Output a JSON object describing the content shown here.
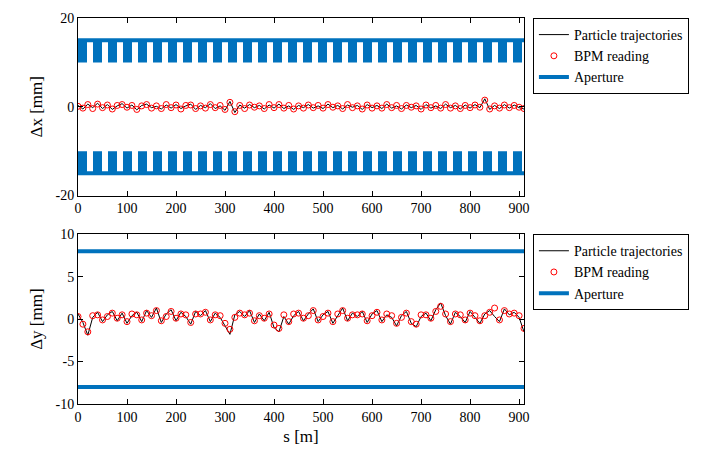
{
  "chart_data": [
    {
      "type": "line",
      "ylabel": "Δx [mm]",
      "xlim": [
        0,
        910
      ],
      "xticks": [
        0,
        100,
        200,
        300,
        400,
        500,
        600,
        700,
        800,
        900
      ],
      "ylim": [
        -20,
        20
      ],
      "yticks": [
        -20,
        0,
        20
      ],
      "grid": false,
      "legend": "right",
      "x": [
        0,
        10,
        20,
        30,
        40,
        50,
        60,
        70,
        80,
        90,
        100,
        110,
        120,
        130,
        140,
        150,
        160,
        170,
        180,
        190,
        200,
        210,
        220,
        230,
        240,
        250,
        260,
        270,
        280,
        290,
        300,
        310,
        320,
        330,
        340,
        350,
        360,
        370,
        380,
        390,
        400,
        410,
        420,
        430,
        440,
        450,
        460,
        470,
        480,
        490,
        500,
        510,
        520,
        530,
        540,
        550,
        560,
        570,
        580,
        590,
        600,
        610,
        620,
        630,
        640,
        650,
        660,
        670,
        680,
        690,
        700,
        710,
        720,
        730,
        740,
        750,
        760,
        770,
        780,
        790,
        800,
        810,
        820,
        830,
        840,
        850,
        860,
        870,
        880,
        890,
        900,
        910
      ],
      "series": [
        {
          "name": "Particle trajectories",
          "type": "line",
          "color": "#000000",
          "values": [
            0.3,
            -0.5,
            0.6,
            -0.2,
            0.8,
            -0.4,
            0.5,
            -0.6,
            0.2,
            0.7,
            -0.3,
            0.4,
            -0.7,
            0.3,
            0.6,
            -0.2,
            0.1,
            -0.5,
            0.4,
            -0.3,
            0.5,
            -0.4,
            0.2,
            0.6,
            -0.6,
            0.3,
            -0.2,
            0.7,
            -0.4,
            0.2,
            -0.8,
            1.2,
            -1.3,
            0.4,
            -0.3,
            0.5,
            -0.2,
            0.3,
            -0.5,
            0.4,
            -0.3,
            0.6,
            -0.4,
            0.2,
            -0.6,
            0.3,
            -0.2,
            0.5,
            -0.3,
            0.2,
            -0.4,
            0.6,
            -0.2,
            0.3,
            -0.5,
            0.4,
            -0.1,
            0.3,
            -0.6,
            0.5,
            -0.2,
            0.3,
            -0.4,
            0.6,
            -0.3,
            0.2,
            -0.5,
            0.4,
            -0.2,
            0.3,
            -0.6,
            0.5,
            -0.3,
            0.2,
            -0.4,
            0.6,
            -0.2,
            0.3,
            -0.5,
            0.4,
            -0.3,
            0.5,
            -0.2,
            1.8,
            -0.6,
            0.3,
            -0.4,
            0.5,
            -0.3,
            0.4,
            -0.2,
            -0.5
          ]
        },
        {
          "name": "BPM reading",
          "type": "scatter",
          "marker": "circle-open",
          "color": "#ff0000",
          "values": [
            0.1,
            -0.3,
            0.5,
            -0.4,
            0.6,
            -0.2,
            0.4,
            -0.5,
            0.3,
            0.5,
            -0.1,
            0.3,
            -0.6,
            0.2,
            0.5,
            -0.3,
            0.2,
            -0.4,
            0.5,
            -0.2,
            0.4,
            -0.5,
            0.3,
            0.4,
            -0.4,
            0.2,
            -0.3,
            0.5,
            -0.2,
            0.3,
            -0.6,
            1.0,
            -1.1,
            0.3,
            -0.4,
            0.4,
            -0.1,
            0.2,
            -0.4,
            0.5,
            -0.2,
            0.5,
            -0.3,
            0.3,
            -0.5,
            0.2,
            -0.3,
            0.4,
            -0.2,
            0.3,
            -0.3,
            0.5,
            -0.1,
            0.2,
            -0.4,
            0.5,
            -0.2,
            0.2,
            -0.5,
            0.4,
            -0.3,
            0.2,
            -0.3,
            0.5,
            -0.2,
            0.3,
            -0.4,
            0.3,
            -0.1,
            0.2,
            -0.5,
            0.4,
            -0.2,
            0.3,
            -0.3,
            0.5,
            -0.3,
            0.2,
            -0.4,
            0.3,
            -0.2,
            0.4,
            -0.1,
            1.5,
            -0.5,
            0.2,
            -0.3,
            0.4,
            -0.2,
            0.3,
            -0.1,
            -0.4
          ]
        },
        {
          "name": "Aperture",
          "type": "hline",
          "color": "#0072bd",
          "levels": [
            15,
            -15
          ],
          "inner_levels": [
            10,
            -10
          ]
        }
      ]
    },
    {
      "type": "line",
      "xlabel": "s [m]",
      "ylabel": "Δy [mm]",
      "xlim": [
        0,
        910
      ],
      "xticks": [
        0,
        100,
        200,
        300,
        400,
        500,
        600,
        700,
        800,
        900
      ],
      "ylim": [
        -10,
        10
      ],
      "yticks": [
        -10,
        -5,
        0,
        5,
        10
      ],
      "grid": false,
      "legend": "right",
      "x": [
        0,
        10,
        20,
        30,
        40,
        50,
        60,
        70,
        80,
        90,
        100,
        110,
        120,
        130,
        140,
        150,
        160,
        170,
        180,
        190,
        200,
        210,
        220,
        230,
        240,
        250,
        260,
        270,
        280,
        290,
        300,
        310,
        320,
        330,
        340,
        350,
        360,
        370,
        380,
        390,
        400,
        410,
        420,
        430,
        440,
        450,
        460,
        470,
        480,
        490,
        500,
        510,
        520,
        530,
        540,
        550,
        560,
        570,
        580,
        590,
        600,
        610,
        620,
        630,
        640,
        650,
        660,
        670,
        680,
        690,
        700,
        710,
        720,
        730,
        740,
        750,
        760,
        770,
        780,
        790,
        800,
        810,
        820,
        830,
        840,
        850,
        860,
        870,
        880,
        890,
        900,
        910
      ],
      "series": [
        {
          "name": "Particle trajectories",
          "type": "line",
          "color": "#000000",
          "values": [
            0.6,
            -0.4,
            -1.9,
            0.2,
            0.8,
            -0.3,
            0.5,
            0.9,
            -0.2,
            0.7,
            -0.5,
            0.4,
            0.8,
            -0.3,
            1.0,
            0.2,
            1.3,
            -0.4,
            0.6,
            1.1,
            -0.2,
            0.8,
            0.3,
            -0.6,
            0.9,
            0.4,
            1.0,
            -0.3,
            0.7,
            0.2,
            -0.8,
            -1.8,
            0.5,
            0.9,
            0.3,
            1.0,
            -0.4,
            0.6,
            -0.2,
            0.8,
            -1.0,
            -1.5,
            0.3,
            -0.6,
            0.4,
            0.9,
            -0.2,
            0.6,
            1.2,
            -0.3,
            0.5,
            0.9,
            -0.5,
            0.4,
            1.3,
            -0.2,
            0.7,
            0.3,
            0.9,
            -0.4,
            0.6,
            1.0,
            -0.3,
            0.5,
            0.2,
            -0.8,
            0.4,
            0.9,
            -0.5,
            -0.9,
            0.3,
            0.7,
            -0.2,
            1.1,
            1.9,
            0.4,
            -0.6,
            0.8,
            0.3,
            -0.4,
            0.9,
            0.2,
            -0.5,
            0.6,
            1.0,
            0.3,
            -0.3,
            1.2,
            0.5,
            0.8,
            0.2,
            -1.5
          ]
        },
        {
          "name": "BPM reading",
          "type": "scatter",
          "marker": "circle-open",
          "color": "#ff0000",
          "values": [
            0.3,
            -0.6,
            -1.5,
            0.4,
            0.5,
            -0.1,
            0.3,
            0.7,
            0.1,
            0.5,
            -0.3,
            0.6,
            0.5,
            -0.1,
            0.7,
            0.4,
            1.0,
            -0.2,
            0.3,
            0.9,
            0.1,
            0.6,
            0.5,
            -0.4,
            0.6,
            0.6,
            0.8,
            -0.1,
            0.5,
            0.4,
            -0.5,
            -1.2,
            0.2,
            0.7,
            0.5,
            0.7,
            -0.2,
            0.4,
            0.1,
            0.6,
            -0.7,
            -1.1,
            0.5,
            -0.3,
            0.6,
            0.7,
            0.1,
            0.4,
            1.0,
            -0.1,
            0.3,
            0.7,
            -0.3,
            0.6,
            1.0,
            0.1,
            0.5,
            0.5,
            0.6,
            -0.2,
            0.4,
            0.8,
            -0.1,
            0.6,
            0.4,
            -0.5,
            0.2,
            0.7,
            -0.3,
            -0.6,
            0.5,
            0.5,
            0.1,
            0.9,
            1.5,
            0.6,
            -0.3,
            0.6,
            0.5,
            -0.1,
            0.7,
            0.4,
            -0.2,
            0.4,
            0.8,
            1.3,
            -0.1,
            1.0,
            0.6,
            0.7,
            0.4,
            -1.1
          ]
        },
        {
          "name": "Aperture",
          "type": "hline",
          "color": "#0072bd",
          "levels": [
            8,
            -8
          ]
        }
      ]
    }
  ]
}
